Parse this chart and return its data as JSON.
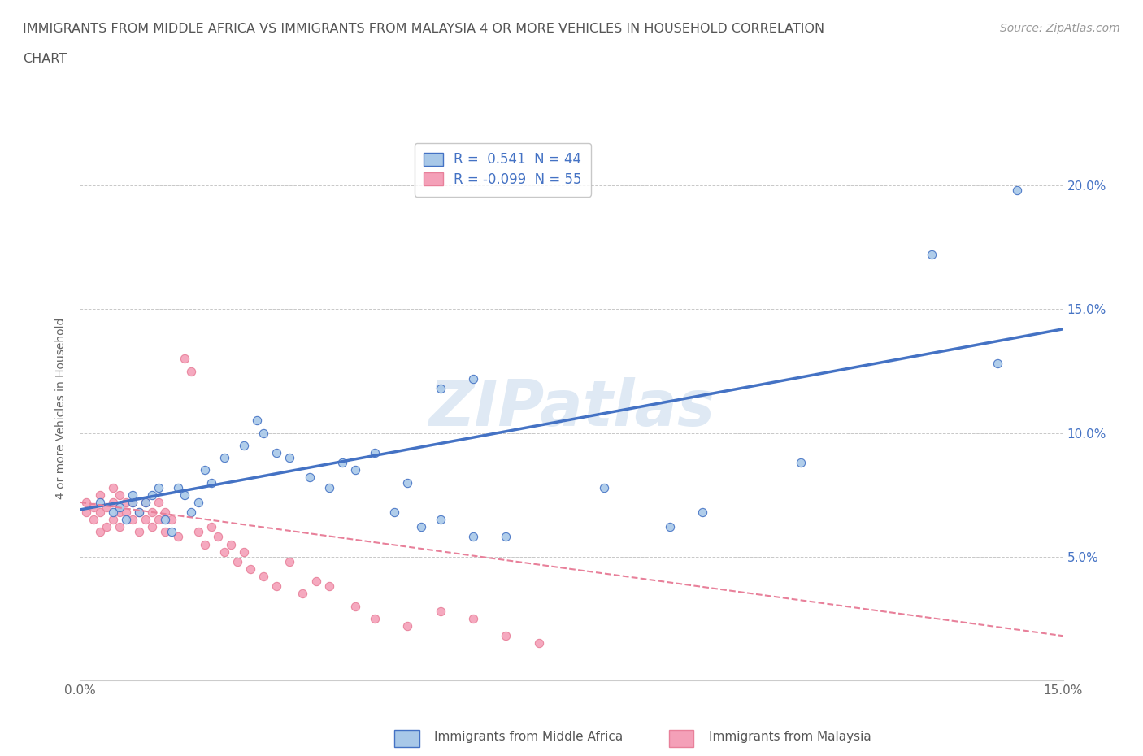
{
  "title_line1": "IMMIGRANTS FROM MIDDLE AFRICA VS IMMIGRANTS FROM MALAYSIA 4 OR MORE VEHICLES IN HOUSEHOLD CORRELATION",
  "title_line2": "CHART",
  "source": "Source: ZipAtlas.com",
  "ylabel": "4 or more Vehicles in Household",
  "xlim": [
    0.0,
    0.15
  ],
  "ylim": [
    0.0,
    0.22
  ],
  "yticks": [
    0.0,
    0.05,
    0.1,
    0.15,
    0.2
  ],
  "yticklabels_left": [
    "",
    "",
    "",
    "",
    ""
  ],
  "yticklabels_right": [
    "",
    "5.0%",
    "10.0%",
    "15.0%",
    "20.0%"
  ],
  "xticks": [
    0.0,
    0.05,
    0.1,
    0.15
  ],
  "xticklabels": [
    "0.0%",
    "",
    "",
    "15.0%"
  ],
  "legend1_r": " 0.541",
  "legend1_n": "44",
  "legend2_r": "-0.099",
  "legend2_n": "55",
  "color_blue": "#a8c8e8",
  "color_pink": "#f4a0b8",
  "line_blue": "#4472c4",
  "line_pink": "#e8809a",
  "watermark": "ZIPatlas",
  "blue_scatter_x": [
    0.003,
    0.005,
    0.006,
    0.007,
    0.008,
    0.008,
    0.009,
    0.01,
    0.011,
    0.012,
    0.013,
    0.014,
    0.015,
    0.016,
    0.017,
    0.018,
    0.019,
    0.02,
    0.022,
    0.025,
    0.027,
    0.028,
    0.03,
    0.032,
    0.035,
    0.038,
    0.04,
    0.042,
    0.045,
    0.048,
    0.05,
    0.052,
    0.055,
    0.06,
    0.065,
    0.055,
    0.06,
    0.08,
    0.09,
    0.095,
    0.11,
    0.13,
    0.14,
    0.143
  ],
  "blue_scatter_y": [
    0.072,
    0.068,
    0.07,
    0.065,
    0.072,
    0.075,
    0.068,
    0.072,
    0.075,
    0.078,
    0.065,
    0.06,
    0.078,
    0.075,
    0.068,
    0.072,
    0.085,
    0.08,
    0.09,
    0.095,
    0.105,
    0.1,
    0.092,
    0.09,
    0.082,
    0.078,
    0.088,
    0.085,
    0.092,
    0.068,
    0.08,
    0.062,
    0.065,
    0.058,
    0.058,
    0.118,
    0.122,
    0.078,
    0.062,
    0.068,
    0.088,
    0.172,
    0.128,
    0.198
  ],
  "pink_scatter_x": [
    0.001,
    0.001,
    0.002,
    0.002,
    0.003,
    0.003,
    0.003,
    0.004,
    0.004,
    0.005,
    0.005,
    0.005,
    0.006,
    0.006,
    0.006,
    0.007,
    0.007,
    0.008,
    0.008,
    0.009,
    0.009,
    0.01,
    0.01,
    0.011,
    0.011,
    0.012,
    0.012,
    0.013,
    0.013,
    0.014,
    0.015,
    0.016,
    0.017,
    0.018,
    0.019,
    0.02,
    0.021,
    0.022,
    0.023,
    0.024,
    0.025,
    0.026,
    0.028,
    0.03,
    0.032,
    0.034,
    0.036,
    0.038,
    0.042,
    0.045,
    0.05,
    0.055,
    0.06,
    0.065,
    0.07
  ],
  "pink_scatter_y": [
    0.068,
    0.072,
    0.065,
    0.07,
    0.06,
    0.068,
    0.075,
    0.062,
    0.07,
    0.065,
    0.072,
    0.078,
    0.062,
    0.068,
    0.075,
    0.072,
    0.068,
    0.065,
    0.072,
    0.06,
    0.068,
    0.072,
    0.065,
    0.062,
    0.068,
    0.065,
    0.072,
    0.06,
    0.068,
    0.065,
    0.058,
    0.13,
    0.125,
    0.06,
    0.055,
    0.062,
    0.058,
    0.052,
    0.055,
    0.048,
    0.052,
    0.045,
    0.042,
    0.038,
    0.048,
    0.035,
    0.04,
    0.038,
    0.03,
    0.025,
    0.022,
    0.028,
    0.025,
    0.018,
    0.015
  ],
  "blue_trend_x0": 0.0,
  "blue_trend_y0": 0.069,
  "blue_trend_x1": 0.15,
  "blue_trend_y1": 0.142,
  "pink_trend_x0": 0.0,
  "pink_trend_y0": 0.072,
  "pink_trend_x1": 0.15,
  "pink_trend_y1": 0.018,
  "grid_color": "#c8c8c8",
  "bg_color": "#ffffff"
}
